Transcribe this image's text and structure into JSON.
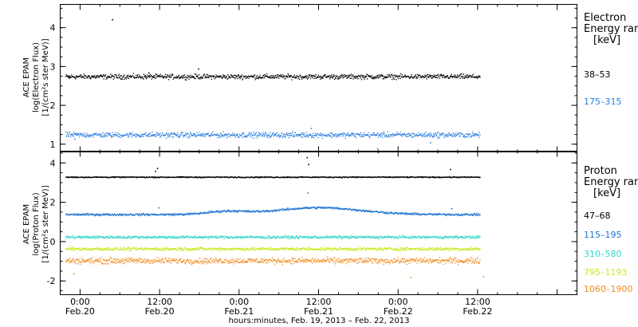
{
  "chart_data": [
    {
      "type": "scatter",
      "ylabel": [
        "ACE EPAM",
        "log(Electron Flux)",
        "[1/(cm²s ster MeV)]"
      ],
      "ylim": [
        0.8,
        4.6
      ],
      "yticks": [
        1,
        2,
        3,
        4
      ],
      "legend_title": [
        "Electron",
        "Energy ran",
        "[keV]"
      ],
      "series": [
        {
          "name": "38–53",
          "color": "#000000",
          "y": 2.75,
          "noise": 0.09,
          "points": [
            [
              0.5,
              2.72
            ],
            [
              7.0,
              4.22
            ],
            [
              12.5,
              2.85
            ],
            [
              20.0,
              2.95
            ]
          ]
        },
        {
          "name": "175–315",
          "color": "#2b7fe0",
          "y": 1.25,
          "noise": 0.1,
          "points": [
            [
              1.3,
              1.15
            ],
            [
              47.0,
              0.9
            ],
            [
              55.0,
              1.05
            ],
            [
              37.0,
              1.42
            ]
          ]
        }
      ]
    },
    {
      "type": "scatter",
      "ylabel": [
        "ACE EPAM",
        "log(Proton Flux)",
        "[1/(cm²s ster MeV)]"
      ],
      "ylim": [
        -2.7,
        4.6
      ],
      "yticks": [
        -2,
        0,
        2,
        4
      ],
      "legend_title": [
        "Proton",
        "Energy ran",
        "[keV]"
      ],
      "series": [
        {
          "name": "47–68",
          "color": "#000000",
          "y": 3.3,
          "noise": 0.04,
          "points": [
            [
              13.5,
              3.6
            ],
            [
              13.8,
              3.75
            ],
            [
              36.4,
              4.3
            ],
            [
              36.6,
              3.95
            ],
            [
              58.0,
              3.7
            ]
          ]
        },
        {
          "name": "115–195",
          "color": "#1e73d2",
          "y": 1.4,
          "noise": 0.08,
          "points": [
            [
              14.0,
              1.75
            ],
            [
              36.5,
              2.5
            ],
            [
              58.2,
              1.7
            ]
          ]
        },
        {
          "name": "310–580",
          "color": "#33d6cc",
          "y": 0.25,
          "noise": 0.1,
          "points": []
        },
        {
          "name": "795–1193",
          "color": "#c8e81e",
          "y": -0.35,
          "noise": 0.12,
          "points": []
        },
        {
          "name": "1060–1900",
          "color": "#f08c1e",
          "y": -0.95,
          "noise": 0.22,
          "points": [
            [
              1.2,
              -1.6
            ],
            [
              52.0,
              -1.8
            ],
            [
              63.0,
              -1.75
            ]
          ]
        }
      ]
    }
  ],
  "x_axis": {
    "label": "hours:minutes, Feb. 19, 2013 – Feb. 22, 2013",
    "x_hours_range": [
      -3,
      75
    ],
    "ticks": [
      {
        "hours": 0,
        "time": "0:00",
        "date": "Feb.20"
      },
      {
        "hours": 12,
        "time": "12:00",
        "date": "Feb.20"
      },
      {
        "hours": 24,
        "time": "0:00",
        "date": "Feb.21"
      },
      {
        "hours": 36,
        "time": "12:00",
        "date": "Feb.21"
      },
      {
        "hours": 48,
        "time": "0:00",
        "date": "Feb.22"
      },
      {
        "hours": 60,
        "time": "12:00",
        "date": "Feb.22"
      }
    ],
    "data_start_hours": 0,
    "data_end_hours": 62.5
  }
}
